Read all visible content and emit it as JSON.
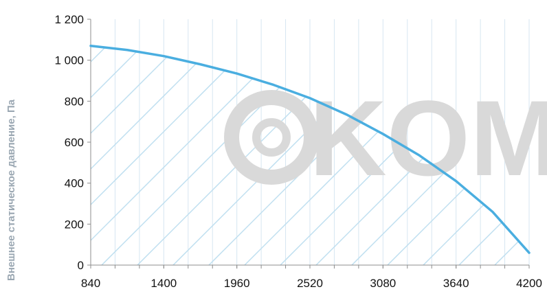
{
  "chart_data": {
    "type": "area",
    "title": "",
    "xlabel": "",
    "ylabel": "Внешнее статическое давление, Па",
    "x_ticks": [
      840,
      1400,
      1960,
      2520,
      3080,
      3640,
      4200
    ],
    "x_tick_labels": [
      "840",
      "1400",
      "1960",
      "2520",
      "3080",
      "3640",
      "4200"
    ],
    "y_ticks": [
      0,
      200,
      400,
      600,
      800,
      1000,
      1200
    ],
    "y_tick_labels": [
      "0",
      "200",
      "400",
      "600",
      "800",
      "1 000",
      "1 200"
    ],
    "xlim": [
      840,
      4200
    ],
    "ylim": [
      0,
      1200
    ],
    "grid": "vertical",
    "legend": "none",
    "series": [
      {
        "x": [
          840,
          1120,
          1400,
          1680,
          1960,
          2240,
          2520,
          2800,
          3080,
          3360,
          3640,
          3920,
          4200
        ],
        "y": [
          1070,
          1050,
          1020,
          980,
          935,
          880,
          815,
          735,
          640,
          535,
          410,
          260,
          60
        ],
        "color": "#4aaee0"
      }
    ],
    "fill": "hatched",
    "hatch_color": "#bfdff0",
    "grid_color": "#d6e6f1"
  },
  "watermark": {
    "text": "KOM",
    "color": "#d9d9d9",
    "icon": "copyright-circle-icon"
  }
}
